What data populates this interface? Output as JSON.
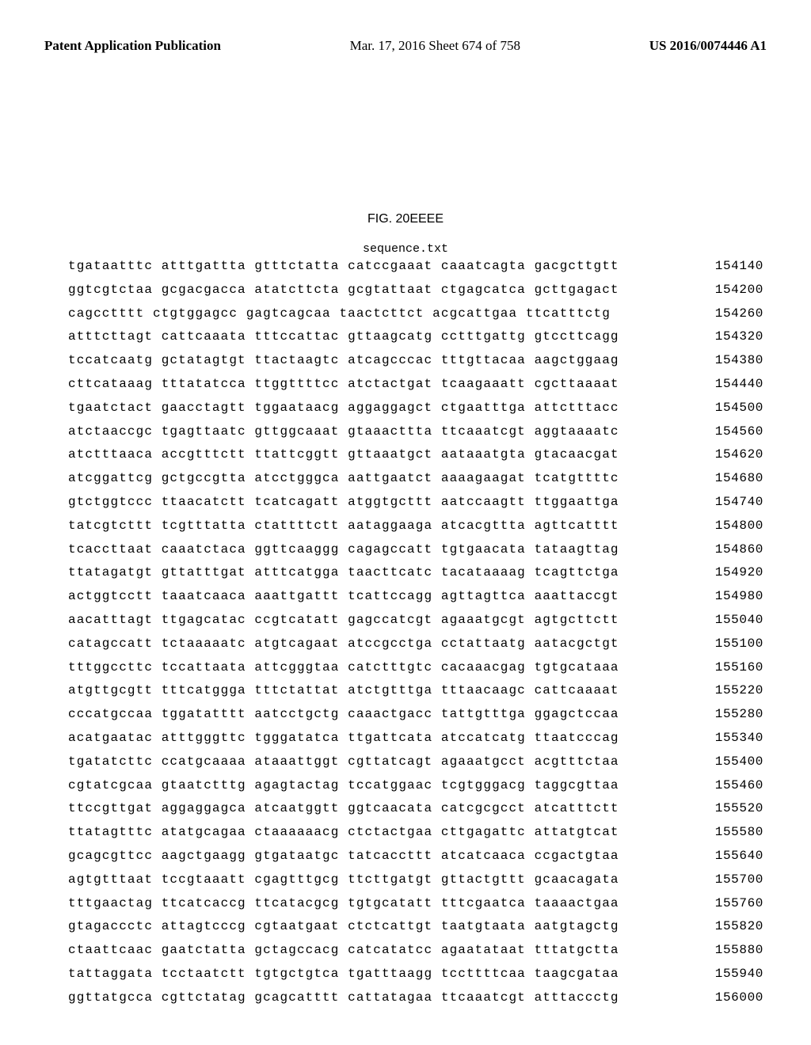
{
  "header": {
    "left": "Patent Application Publication",
    "center": "Mar. 17, 2016  Sheet 674 of 758",
    "right": "US 2016/0074446 A1"
  },
  "figure_caption": "FIG. 20EEEE",
  "sequence_label": "sequence.txt",
  "sequence": {
    "rows": [
      {
        "chunks": [
          "tgataatttc",
          "atttgattta",
          "gtttctatta",
          "catccgaaat",
          "caaatcagta",
          "gacgcttgtt"
        ],
        "pos": "154140"
      },
      {
        "chunks": [
          "ggtcgtctaa",
          "gcgacgacca",
          "atatcttcta",
          "gcgtattaat",
          "ctgagcatca",
          "gcttgagact"
        ],
        "pos": "154200"
      },
      {
        "chunks": [
          "cagcctttt",
          "ctgtggagcc",
          "gagtcagcaa",
          "taactcttct",
          "acgcattgaa",
          "ttcatttctg"
        ],
        "pos": "154260"
      },
      {
        "chunks": [
          "atttcttagt",
          "cattcaaata",
          "tttccattac",
          "gttaagcatg",
          "cctttgattg",
          "gtccttcagg"
        ],
        "pos": "154320"
      },
      {
        "chunks": [
          "tccatcaatg",
          "gctatagtgt",
          "ttactaagtc",
          "atcagcccac",
          "tttgttacaa",
          "aagctggaag"
        ],
        "pos": "154380"
      },
      {
        "chunks": [
          "cttcataaag",
          "tttatatcca",
          "ttggttttcc",
          "atctactgat",
          "tcaagaaatt",
          "cgcttaaaat"
        ],
        "pos": "154440"
      },
      {
        "chunks": [
          "tgaatctact",
          "gaacctagtt",
          "tggaataacg",
          "aggaggagct",
          "ctgaatttga",
          "attctttacc"
        ],
        "pos": "154500"
      },
      {
        "chunks": [
          "atctaaccgc",
          "tgagttaatc",
          "gttggcaaat",
          "gtaaacttta",
          "ttcaaatcgt",
          "aggtaaaatc"
        ],
        "pos": "154560"
      },
      {
        "chunks": [
          "atctttaaca",
          "accgtttctt",
          "ttattcggtt",
          "gttaaatgct",
          "aataaatgta",
          "gtacaacgat"
        ],
        "pos": "154620"
      },
      {
        "chunks": [
          "atcggattcg",
          "gctgccgtta",
          "atcctgggca",
          "aattgaatct",
          "aaaagaagat",
          "tcatgttttc"
        ],
        "pos": "154680"
      },
      {
        "chunks": [
          "gtctggtccc",
          "ttaacatctt",
          "tcatcagatt",
          "atggtgcttt",
          "aatccaagtt",
          "ttggaattga"
        ],
        "pos": "154740"
      },
      {
        "chunks": [
          "tatcgtcttt",
          "tcgtttatta",
          "ctattttctt",
          "aataggaaga",
          "atcacgttta",
          "agttcatttt"
        ],
        "pos": "154800"
      },
      {
        "chunks": [
          "tcaccttaat",
          "caaatctaca",
          "ggttcaaggg",
          "cagagccatt",
          "tgtgaacata",
          "tataagttag"
        ],
        "pos": "154860"
      },
      {
        "chunks": [
          "ttatagatgt",
          "gttatttgat",
          "atttcatgga",
          "taacttcatc",
          "tacataaaag",
          "tcagttctga"
        ],
        "pos": "154920"
      },
      {
        "chunks": [
          "actggtcctt",
          "taaatcaaca",
          "aaattgattt",
          "tcattccagg",
          "agttagttca",
          "aaattaccgt"
        ],
        "pos": "154980"
      },
      {
        "chunks": [
          "aacatttagt",
          "ttgagcatac",
          "ccgtcatatt",
          "gagccatcgt",
          "agaaatgcgt",
          "agtgcttctt"
        ],
        "pos": "155040"
      },
      {
        "chunks": [
          "catagccatt",
          "tctaaaaatc",
          "atgtcagaat",
          "atccgcctga",
          "cctattaatg",
          "aatacgctgt"
        ],
        "pos": "155100"
      },
      {
        "chunks": [
          "tttggccttc",
          "tccattaata",
          "attcgggtaa",
          "catctttgtc",
          "cacaaacgag",
          "tgtgcataaa"
        ],
        "pos": "155160"
      },
      {
        "chunks": [
          "atgttgcgtt",
          "tttcatggga",
          "tttctattat",
          "atctgtttga",
          "tttaacaagc",
          "cattcaaaat"
        ],
        "pos": "155220"
      },
      {
        "chunks": [
          "cccatgccaa",
          "tggatatttt",
          "aatcctgctg",
          "caaactgacc",
          "tattgtttga",
          "ggagctccaa"
        ],
        "pos": "155280"
      },
      {
        "chunks": [
          "acatgaatac",
          "atttgggttc",
          "tgggatatca",
          "ttgattcata",
          "atccatcatg",
          "ttaatcccag"
        ],
        "pos": "155340"
      },
      {
        "chunks": [
          "tgatatcttc",
          "ccatgcaaaa",
          "ataaattggt",
          "cgttatcagt",
          "agaaatgcct",
          "acgtttctaa"
        ],
        "pos": "155400"
      },
      {
        "chunks": [
          "cgtatcgcaa",
          "gtaatctttg",
          "agagtactag",
          "tccatggaac",
          "tcgtgggacg",
          "taggcgttaa"
        ],
        "pos": "155460"
      },
      {
        "chunks": [
          "ttccgttgat",
          "aggaggagca",
          "atcaatggtt",
          "ggtcaacata",
          "catcgcgcct",
          "atcatttctt"
        ],
        "pos": "155520"
      },
      {
        "chunks": [
          "ttatagtttc",
          "atatgcagaa",
          "ctaaaaaacg",
          "ctctactgaa",
          "cttgagattc",
          "attatgtcat"
        ],
        "pos": "155580"
      },
      {
        "chunks": [
          "gcagcgttcc",
          "aagctgaagg",
          "gtgataatgc",
          "tatcaccttt",
          "atcatcaaca",
          "ccgactgtaa"
        ],
        "pos": "155640"
      },
      {
        "chunks": [
          "agtgtttaat",
          "tccgtaaatt",
          "cgagtttgcg",
          "ttcttgatgt",
          "gttactgttt",
          "gcaacagata"
        ],
        "pos": "155700"
      },
      {
        "chunks": [
          "tttgaactag",
          "ttcatcaccg",
          "ttcatacgcg",
          "tgtgcatatt",
          "tttcgaatca",
          "taaaactgaa"
        ],
        "pos": "155760"
      },
      {
        "chunks": [
          "gtagaccctc",
          "attagtcccg",
          "cgtaatgaat",
          "ctctcattgt",
          "taatgtaata",
          "aatgtagctg"
        ],
        "pos": "155820"
      },
      {
        "chunks": [
          "ctaattcaac",
          "gaatctatta",
          "gctagccacg",
          "catcatatcc",
          "agaatataat",
          "tttatgctta"
        ],
        "pos": "155880"
      },
      {
        "chunks": [
          "tattaggata",
          "tcctaatctt",
          "tgtgctgtca",
          "tgatttaagg",
          "tccttttcaa",
          "taagcgataa"
        ],
        "pos": "155940"
      },
      {
        "chunks": [
          "ggttatgcca",
          "cgttctatag",
          "gcagcatttt",
          "cattatagaa",
          "ttcaaatcgt",
          "atttaccctg"
        ],
        "pos": "156000"
      }
    ]
  }
}
